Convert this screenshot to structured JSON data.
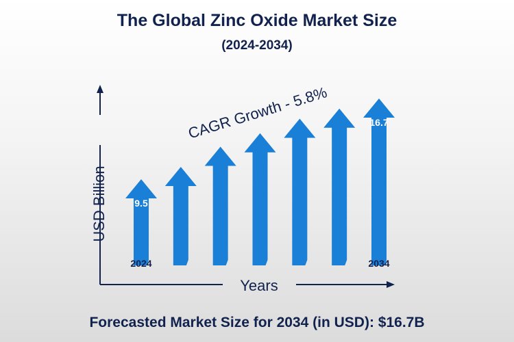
{
  "chart_data": {
    "type": "bar",
    "title": "The Global Zinc Oxide Market Size",
    "subtitle": "(2024-2034)",
    "ylabel": "USD Billion",
    "xlabel": "Years",
    "annotation": "CAGR Growth - 5.8%",
    "categories": [
      "2024",
      "",
      "",
      "",
      "",
      "",
      "2034"
    ],
    "values": [
      9.5,
      10.6,
      12.4,
      13.6,
      14.9,
      15.8,
      16.7
    ],
    "data_labels": [
      "9.5",
      "",
      "",
      "",
      "",
      "",
      "16.7"
    ],
    "bar_color": "#1a7fd6",
    "text_color": "#10224d",
    "grid": false
  },
  "footer": "Forecasted Market Size for 2034 (in USD): $16.7B"
}
